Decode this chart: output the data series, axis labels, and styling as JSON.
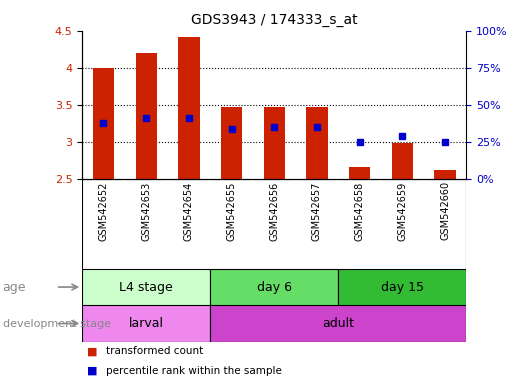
{
  "title": "GDS3943 / 174333_s_at",
  "samples": [
    "GSM542652",
    "GSM542653",
    "GSM542654",
    "GSM542655",
    "GSM542656",
    "GSM542657",
    "GSM542658",
    "GSM542659",
    "GSM542660"
  ],
  "transformed_count": [
    4.0,
    4.2,
    4.42,
    3.47,
    3.47,
    3.47,
    2.65,
    2.98,
    2.62
  ],
  "bar_bottom": 2.5,
  "percentile_rank_y": [
    3.25,
    3.32,
    3.32,
    3.17,
    3.2,
    3.2,
    3.0,
    3.08,
    3.0
  ],
  "ylim": [
    2.5,
    4.5
  ],
  "yticks": [
    2.5,
    3.0,
    3.5,
    4.0,
    4.5
  ],
  "ytick_labels": [
    "2.5",
    "3",
    "3.5",
    "4",
    "4.5"
  ],
  "y2ticks_labels": [
    "0%",
    "25%",
    "50%",
    "75%",
    "100%"
  ],
  "y2ticks_values": [
    2.5,
    3.0,
    3.5,
    4.0,
    4.5
  ],
  "bar_color": "#cc2200",
  "dot_color": "#0000cc",
  "age_groups": [
    {
      "label": "L4 stage",
      "start": 0,
      "end": 3,
      "color": "#ccffcc"
    },
    {
      "label": "day 6",
      "start": 3,
      "end": 6,
      "color": "#66dd66"
    },
    {
      "label": "day 15",
      "start": 6,
      "end": 9,
      "color": "#33bb33"
    }
  ],
  "dev_groups": [
    {
      "label": "larval",
      "start": 0,
      "end": 3,
      "color": "#ee88ee"
    },
    {
      "label": "adult",
      "start": 3,
      "end": 9,
      "color": "#cc44cc"
    }
  ],
  "bar_width": 0.5,
  "tick_label_color": "#cc2200",
  "y2_label_color": "#0000cc",
  "sample_bg_color": "#d0d0d0",
  "legend_items": [
    {
      "color": "#cc2200",
      "label": "transformed count"
    },
    {
      "color": "#0000cc",
      "label": "percentile rank within the sample"
    }
  ]
}
